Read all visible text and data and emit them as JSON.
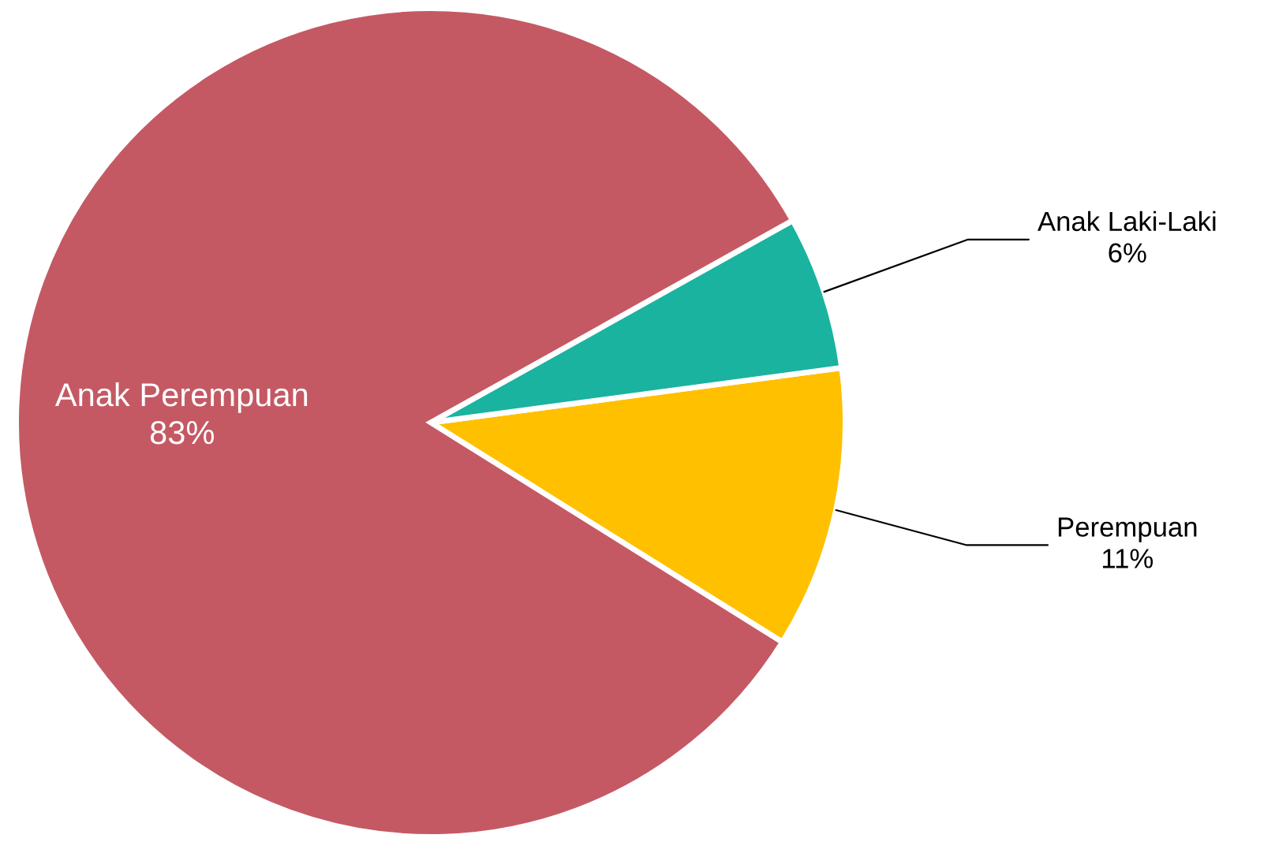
{
  "chart_data": {
    "type": "pie",
    "categories": [
      "Perempuan",
      "Anak Laki-Laki",
      "Anak Perempuan"
    ],
    "values": [
      11,
      6,
      83
    ],
    "colors": [
      "#ffc000",
      "#1ab3a0",
      "#c45964"
    ],
    "value_labels": [
      "11%",
      "6%",
      "83%"
    ]
  }
}
